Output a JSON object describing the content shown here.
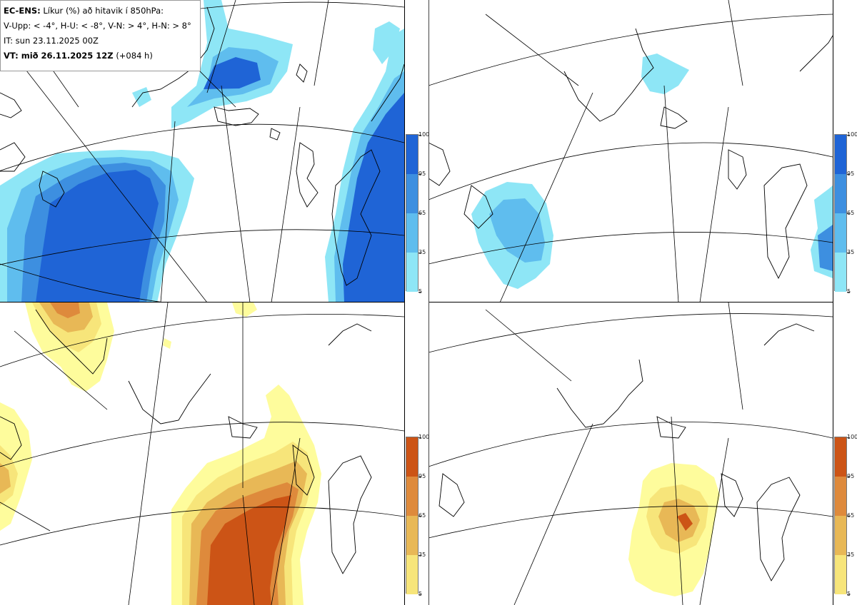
{
  "header": {
    "product_bold": "EC-ENS:",
    "product_text": "Líkur (%) að hitavik í 850hPa:",
    "thresholds": "V-Upp: < -4°, H-U: < -8°, V-N: > 4°, H-N: > 8°",
    "initial_time": "IT: sun 23.11.2025 00Z",
    "valid_bold": "VT: mið 26.11.2025 12Z",
    "valid_lead": "(+084 h)"
  },
  "panels": [
    {
      "id": "V-Upp",
      "position": "top-left",
      "threshold": "< -4°",
      "palette": "blue"
    },
    {
      "id": "H-U",
      "position": "top-right",
      "threshold": "< -8°",
      "palette": "blue"
    },
    {
      "id": "V-N",
      "position": "bottom-left",
      "threshold": "> 4°",
      "palette": "orange"
    },
    {
      "id": "H-N",
      "position": "bottom-right",
      "threshold": "> 8°",
      "palette": "orange"
    }
  ],
  "colorbar": {
    "ticks": [
      "100",
      "95",
      "65",
      "35",
      "5"
    ],
    "blue_colors": [
      "#1f64d6",
      "#3d8fe0",
      "#5fbdee",
      "#8ee6f6",
      "#c3fbfd"
    ],
    "orange_colors": [
      "#cc5416",
      "#de8a3c",
      "#e8b856",
      "#f7e57a",
      "#fefc9c"
    ]
  }
}
